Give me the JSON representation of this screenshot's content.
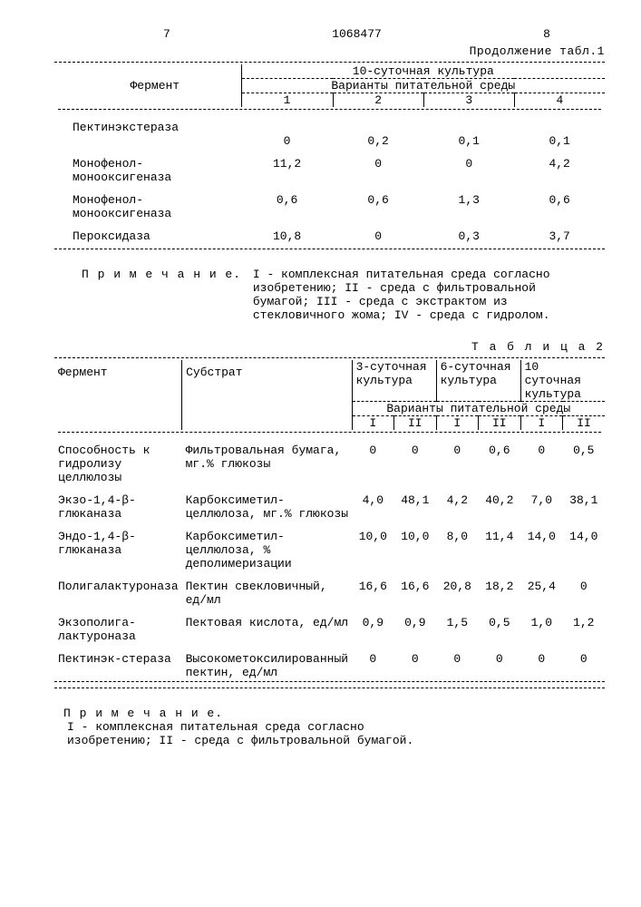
{
  "page": {
    "left_num": "7",
    "doc_num": "1068477",
    "right_num": "8",
    "continuation": "Продолжение табл.1"
  },
  "table1": {
    "super_header": "10-суточная культура",
    "sub_header": "Варианты питательной среды",
    "enzyme_label": "Фермент",
    "variants": [
      "1",
      "2",
      "3",
      "4"
    ],
    "rows": [
      {
        "enzyme": "Пектинэкстераза",
        "v": [
          "0",
          "0,2",
          "0,1",
          "0,1"
        ]
      },
      {
        "enzyme": "Монофенол-монооксигеназа",
        "v": [
          "11,2",
          "0",
          "0",
          "4,2"
        ]
      },
      {
        "enzyme": "Монофенол-монооксигеназа",
        "v": [
          "0,6",
          "0,6",
          "1,3",
          "0,6"
        ]
      },
      {
        "enzyme": "Пероксидаза",
        "v": [
          "10,8",
          "0",
          "0,3",
          "3,7"
        ]
      }
    ],
    "note_label": "П р и м е ч а н и е.",
    "note_body": "I - комплексная питательная среда согласно изобретению; II - среда с фильтровальной бумагой; III - среда с экстрактом из стекловичного жома; IV - среда с гидролом."
  },
  "table2": {
    "title": "Т а б л и ц а  2",
    "col_enzyme": "Фермент",
    "col_substrate": "Субстрат",
    "groups": [
      "3-суточная культура",
      "6-суточная культура",
      "10 суточная культура"
    ],
    "sub_header": "Варианты питательной среды",
    "variants": [
      "I",
      "II",
      "I",
      "II",
      "I",
      "II"
    ],
    "rows": [
      {
        "enzyme": "Способность к гидролизу целлюлозы",
        "substrate": "Фильтровальная бумага, мг.% глюкозы",
        "v": [
          "0",
          "0",
          "0",
          "0,6",
          "0",
          "0,5"
        ]
      },
      {
        "enzyme": "Экзо-1,4-β-глюканаза",
        "substrate": "Карбоксиметил-целлюлоза, мг.% глюкозы",
        "v": [
          "4,0",
          "48,1",
          "4,2",
          "40,2",
          "7,0",
          "38,1"
        ]
      },
      {
        "enzyme": "Эндо-1,4-β-глюканаза",
        "substrate": "Карбоксиметил-целлюлоза, % деполимеризации",
        "v": [
          "10,0",
          "10,0",
          "8,0",
          "11,4",
          "14,0",
          "14,0"
        ]
      },
      {
        "enzyme": "Полигалактуроназа",
        "substrate": "Пектин свекловичный, ед/мл",
        "v": [
          "16,6",
          "16,6",
          "20,8",
          "18,2",
          "25,4",
          "0"
        ]
      },
      {
        "enzyme": "Экзополига-лактуроназа",
        "substrate": "Пектовая кислота, ед/мл",
        "v": [
          "0,9",
          "0,9",
          "1,5",
          "0,5",
          "1,0",
          "1,2"
        ]
      },
      {
        "enzyme": "Пектинэк-стераза",
        "substrate": "Высокометоксилированный пектин, ед/мл",
        "v": [
          "0",
          "0",
          "0",
          "0",
          "0",
          "0"
        ]
      }
    ],
    "note_label": "П р и м е ч а н и е.",
    "note_body": "I - комплексная питательная среда согласно изобретению; II - среда с фильтровальной бумагой."
  }
}
